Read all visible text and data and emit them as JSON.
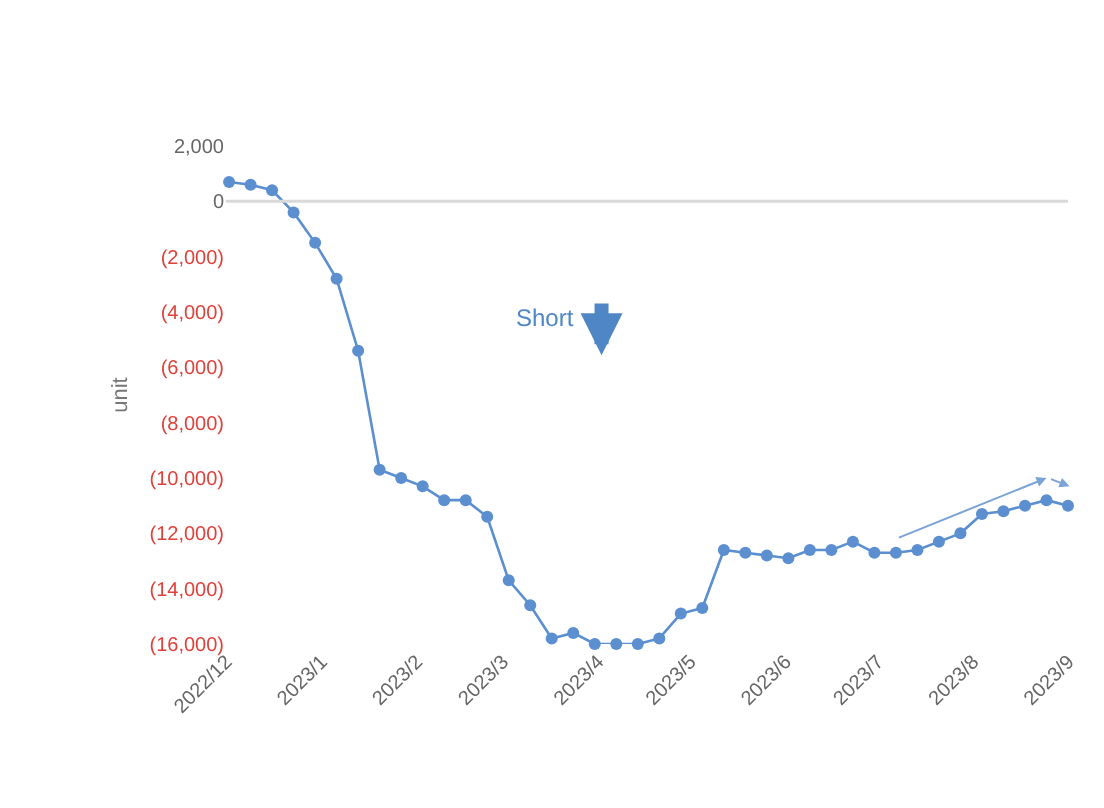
{
  "chart_data": {
    "type": "line",
    "ylabel": "unit",
    "x": [
      "2022-12-02",
      "2022-12-09",
      "2022-12-16",
      "2022-12-23",
      "2022-12-30",
      "2023-01-06",
      "2023-01-13",
      "2023-01-20",
      "2023-01-27",
      "2023-02-03",
      "2023-02-10",
      "2023-02-17",
      "2023-02-24",
      "2023-03-03",
      "2023-03-10",
      "2023-03-17",
      "2023-03-24",
      "2023-03-31",
      "2023-04-07",
      "2023-04-14",
      "2023-04-21",
      "2023-04-28",
      "2023-05-05",
      "2023-05-12",
      "2023-05-19",
      "2023-05-26",
      "2023-06-02",
      "2023-06-09",
      "2023-06-16",
      "2023-06-23",
      "2023-06-30",
      "2023-07-07",
      "2023-07-14",
      "2023-07-21",
      "2023-07-28",
      "2023-08-04",
      "2023-08-11",
      "2023-08-18",
      "2023-08-25",
      "2023-09-01"
    ],
    "series": [
      {
        "color": "#5b8fd0",
        "values": [
          700,
          600,
          400,
          -400,
          -1500,
          -2800,
          -5400,
          -9700,
          -10000,
          -10300,
          -10800,
          -10800,
          -11400,
          -13700,
          -14600,
          -15800,
          -15600,
          -16000,
          -16000,
          -16000,
          -15800,
          -14900,
          -14700,
          -12600,
          -12700,
          -12800,
          -12900,
          -12600,
          -12600,
          -12300,
          -12700,
          -12700,
          -12600,
          -12300,
          -12000,
          -11300,
          -11200,
          -11000,
          -10800,
          -11000
        ]
      }
    ],
    "xlim": [
      "2022-12-01",
      "2023-09-01"
    ],
    "xticks": [
      {
        "value": "2022-12-01",
        "label": "2022/12"
      },
      {
        "value": "2023-01-01",
        "label": "2023/1"
      },
      {
        "value": "2023-02-01",
        "label": "2023/2"
      },
      {
        "value": "2023-03-01",
        "label": "2023/3"
      },
      {
        "value": "2023-04-01",
        "label": "2023/4"
      },
      {
        "value": "2023-05-01",
        "label": "2023/5"
      },
      {
        "value": "2023-06-01",
        "label": "2023/6"
      },
      {
        "value": "2023-07-01",
        "label": "2023/7"
      },
      {
        "value": "2023-08-01",
        "label": "2023/8"
      },
      {
        "value": "2023-09-01",
        "label": "2023/9"
      }
    ],
    "ylim": [
      -16000,
      2000
    ],
    "ref_lines": [
      {
        "axis": "y",
        "value": 0,
        "color": "#d9d9d9"
      }
    ],
    "yticks": [
      {
        "value": 2000,
        "label": "2,000"
      },
      0,
      {
        "value": -2000,
        "label": "(2,000)"
      },
      {
        "value": -4000,
        "label": "(4,000)"
      },
      {
        "value": -6000,
        "label": "(6,000)"
      },
      {
        "value": -8000,
        "label": "(8,000)"
      },
      {
        "value": -10000,
        "label": "(10,000)"
      },
      {
        "value": -12000,
        "label": "(12,000)"
      },
      {
        "value": -14000,
        "label": "(14,000)"
      },
      {
        "value": -16000,
        "label": "(16,000)"
      }
    ],
    "annotations": [
      "Short"
    ],
    "marker": "circle",
    "line_style": "solid"
  }
}
